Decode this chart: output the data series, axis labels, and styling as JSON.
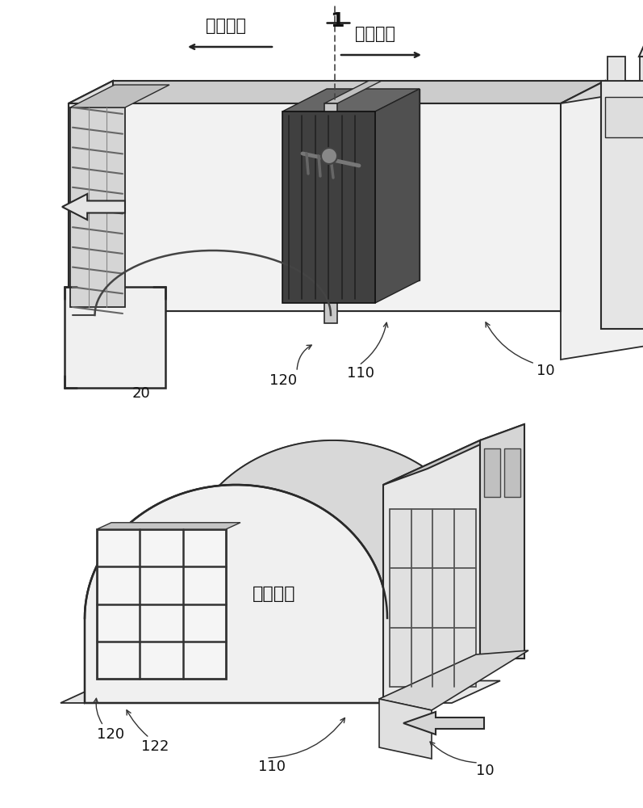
{
  "bg_color": "#ffffff",
  "fig_width": 7.97,
  "fig_height": 10.0,
  "label_1": "1",
  "label_exhaust": "排出区域",
  "label_inflow_top": "流入区域",
  "label_inflow_bot": "流入区域",
  "label_10_top": "10",
  "label_20": "20",
  "label_110_top": "110",
  "label_120_top": "120",
  "label_10_bot": "10",
  "label_110_bot": "110",
  "label_120_bot": "120",
  "label_122_bot": "122",
  "line_color": "#2a2a2a",
  "face_light": "#e8e8e8",
  "face_mid": "#d0d0d0",
  "face_dark": "#b0b0b0",
  "face_white": "#f5f5f5",
  "face_black": "#333333"
}
